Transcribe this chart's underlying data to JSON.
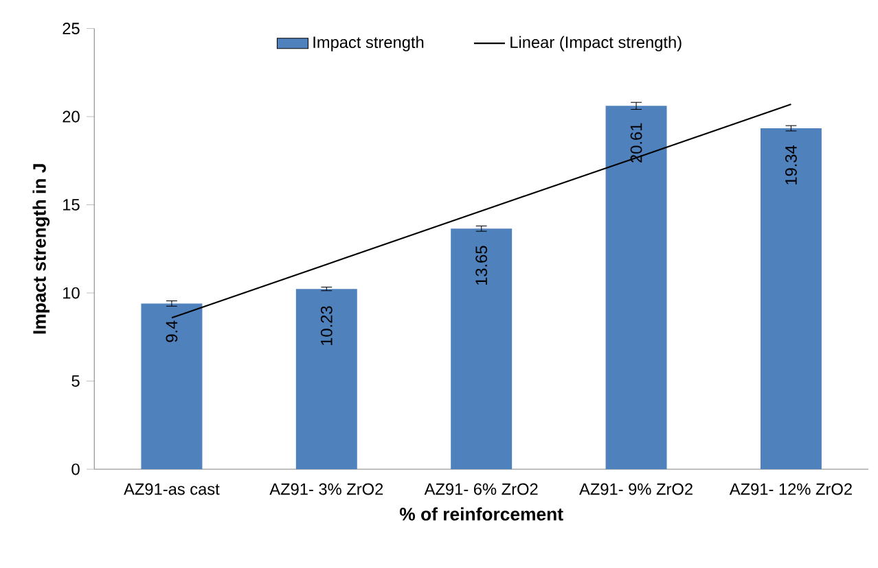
{
  "chart_data": {
    "type": "bar",
    "xlabel": "% of reinforcement",
    "ylabel": "Impact strength in J",
    "categories": [
      "AZ91-as cast",
      "AZ91- 3% ZrO2",
      "AZ91- 6% ZrO2",
      "AZ91- 9% ZrO2",
      "AZ91- 12% ZrO2"
    ],
    "series": [
      {
        "name": "Impact strength",
        "color": "#4f81bd",
        "values": [
          9.4,
          10.23,
          13.65,
          20.61,
          19.34
        ],
        "errors": [
          0.15,
          0.1,
          0.15,
          0.2,
          0.15
        ],
        "value_labels": [
          "9.4",
          "10.23",
          "13.65",
          "20.61",
          "19.34"
        ]
      },
      {
        "name": "Linear (Impact strength)",
        "type": "line",
        "color": "#000000",
        "values": [
          8.59,
          11.62,
          14.65,
          17.67,
          20.7
        ]
      }
    ],
    "ylim": [
      0,
      25
    ],
    "yticks": [
      0,
      5,
      10,
      15,
      20,
      25
    ],
    "legend": "top"
  }
}
